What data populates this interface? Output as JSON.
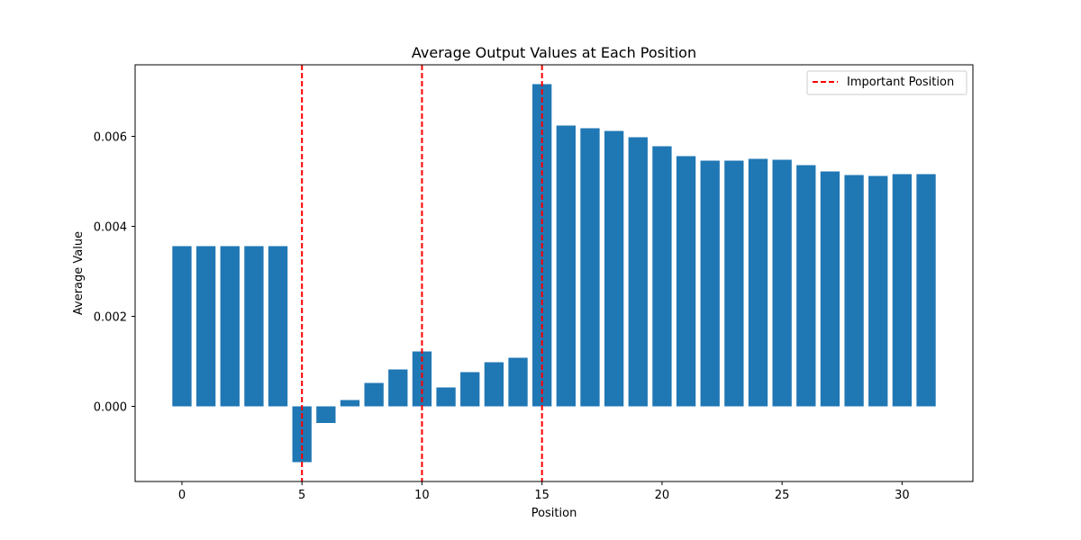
{
  "chart_data": {
    "type": "bar",
    "title": "Average Output Values at Each Position",
    "xlabel": "Position",
    "ylabel": "Average Value",
    "x": [
      0,
      1,
      2,
      3,
      4,
      5,
      6,
      7,
      8,
      9,
      10,
      11,
      12,
      13,
      14,
      15,
      16,
      17,
      18,
      19,
      20,
      21,
      22,
      23,
      24,
      25,
      26,
      27,
      28,
      29,
      30,
      31
    ],
    "values": [
      0.00356,
      0.00356,
      0.00356,
      0.00356,
      0.00356,
      -0.00124,
      -0.00037,
      0.00014,
      0.00052,
      0.00082,
      0.00122,
      0.00042,
      0.00076,
      0.00098,
      0.00108,
      0.00716,
      0.00624,
      0.00618,
      0.00612,
      0.00598,
      0.00578,
      0.00556,
      0.00546,
      0.00546,
      0.0055,
      0.00548,
      0.00536,
      0.00522,
      0.00514,
      0.00512,
      0.00516,
      0.00516
    ],
    "bar_color": "#1f77b4",
    "xlim": [
      -1.95,
      32.95
    ],
    "ylim": [
      -0.00167,
      0.00759
    ],
    "xticks": [
      0,
      5,
      10,
      15,
      20,
      25,
      30
    ],
    "xtick_labels": [
      "0",
      "5",
      "10",
      "15",
      "20",
      "25",
      "30"
    ],
    "yticks": [
      0.0,
      0.002,
      0.004,
      0.006
    ],
    "ytick_labels": [
      "0.000",
      "0.002",
      "0.004",
      "0.006"
    ],
    "vlines": [
      5,
      10,
      15
    ],
    "vline_color": "#ff0000",
    "legend": {
      "label": "Important Position",
      "position": "top-right"
    },
    "grid": false
  }
}
